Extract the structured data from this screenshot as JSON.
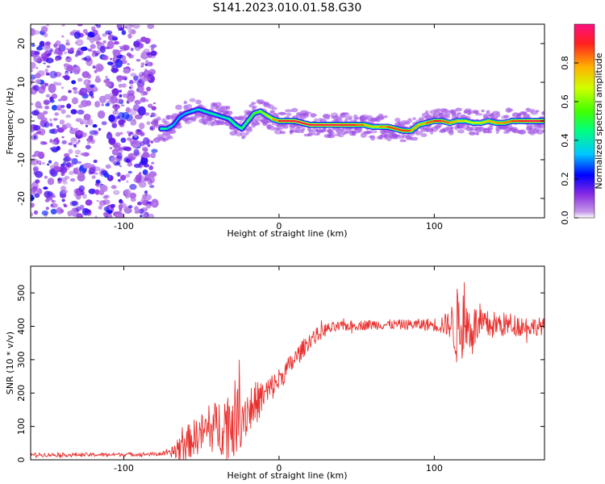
{
  "title": "S141.2023.010.01.58.G30",
  "chart_data": [
    {
      "type": "heatmap",
      "title": "S141.2023.010.01.58.G30",
      "xlabel": "Height of straight line (km)",
      "ylabel": "Frequency (Hz)",
      "xlim": [
        -160,
        171
      ],
      "ylim": [
        -25,
        25
      ],
      "xticks": [
        "-100",
        "0",
        "100"
      ],
      "yticks": [
        "-20",
        "-10",
        "0",
        "10",
        "20"
      ],
      "colorbar": {
        "label": "Normalized spectral amplitude",
        "range": [
          0.0,
          1.0
        ],
        "ticks": [
          "0.0",
          "0.2",
          "0.4",
          "0.6",
          "0.8"
        ],
        "colormap": "gist_rainbow_r"
      },
      "ridge": {
        "x": [
          -76,
          -72,
          -68,
          -64,
          -60,
          -56,
          -52,
          -48,
          -44,
          -40,
          -36,
          -32,
          -28,
          -24,
          -20,
          -16,
          -12,
          -8,
          -4,
          0,
          10,
          20,
          30,
          40,
          50,
          55,
          60,
          65,
          70,
          75,
          80,
          85,
          90,
          95,
          100,
          105,
          110,
          115,
          120,
          125,
          130,
          135,
          140,
          145,
          150,
          155,
          160,
          165,
          170
        ],
        "freq": [
          -2,
          -2,
          -1,
          1,
          2,
          2.5,
          3,
          2.5,
          2,
          1.5,
          1,
          0.5,
          -1,
          -2,
          0,
          2,
          2.5,
          1.5,
          0.5,
          0,
          0,
          -1,
          -1,
          -1,
          -1,
          -1,
          -1.5,
          -1.5,
          -1.5,
          -2,
          -2.5,
          -2.5,
          -1,
          -0.5,
          0,
          0,
          -0.5,
          0,
          0,
          -0.5,
          -0.5,
          0,
          -0.5,
          -0.5,
          0,
          0,
          0,
          0,
          0
        ],
        "amp": [
          0.5,
          0.4,
          0.35,
          0.3,
          0.35,
          0.35,
          0.4,
          0.4,
          0.45,
          0.4,
          0.4,
          0.45,
          0.5,
          0.45,
          0.5,
          0.55,
          0.6,
          0.65,
          0.7,
          0.9,
          0.95,
          0.95,
          0.95,
          0.95,
          0.9,
          0.8,
          0.7,
          0.7,
          0.9,
          0.85,
          0.9,
          0.85,
          0.7,
          0.8,
          0.9,
          0.9,
          0.8,
          0.75,
          0.7,
          0.65,
          0.7,
          0.75,
          0.8,
          0.8,
          0.85,
          0.9,
          0.95,
          0.95,
          0.95
        ]
      },
      "noise_region_x": [
        -160,
        -80
      ]
    },
    {
      "type": "line",
      "xlabel": "Height of straight line (km)",
      "ylabel": "SNR (10 * v/v)",
      "xlim": [
        -160,
        171
      ],
      "ylim": [
        0,
        580
      ],
      "xticks": [
        "-100",
        "0",
        "100"
      ],
      "yticks": [
        "0",
        "100",
        "200",
        "300",
        "400",
        "500"
      ],
      "line_color": "#e8312f",
      "envelope": {
        "x": [
          -160,
          -140,
          -120,
          -100,
          -80,
          -70,
          -66,
          -60,
          -50,
          -40,
          -30,
          -20,
          -10,
          0,
          10,
          20,
          30,
          40,
          60,
          80,
          100,
          110,
          114,
          120,
          130,
          140,
          150,
          160,
          171
        ],
        "base": [
          15,
          15,
          15,
          16,
          17,
          20,
          30,
          50,
          80,
          100,
          120,
          150,
          190,
          240,
          300,
          360,
          390,
          400,
          405,
          405,
          405,
          405,
          400,
          400,
          400,
          405,
          405,
          400,
          400
        ],
        "noise": [
          6,
          6,
          6,
          6,
          6,
          8,
          45,
          50,
          60,
          80,
          120,
          80,
          50,
          35,
          30,
          25,
          20,
          15,
          15,
          15,
          20,
          40,
          120,
          90,
          50,
          40,
          35,
          30,
          25
        ]
      }
    }
  ]
}
